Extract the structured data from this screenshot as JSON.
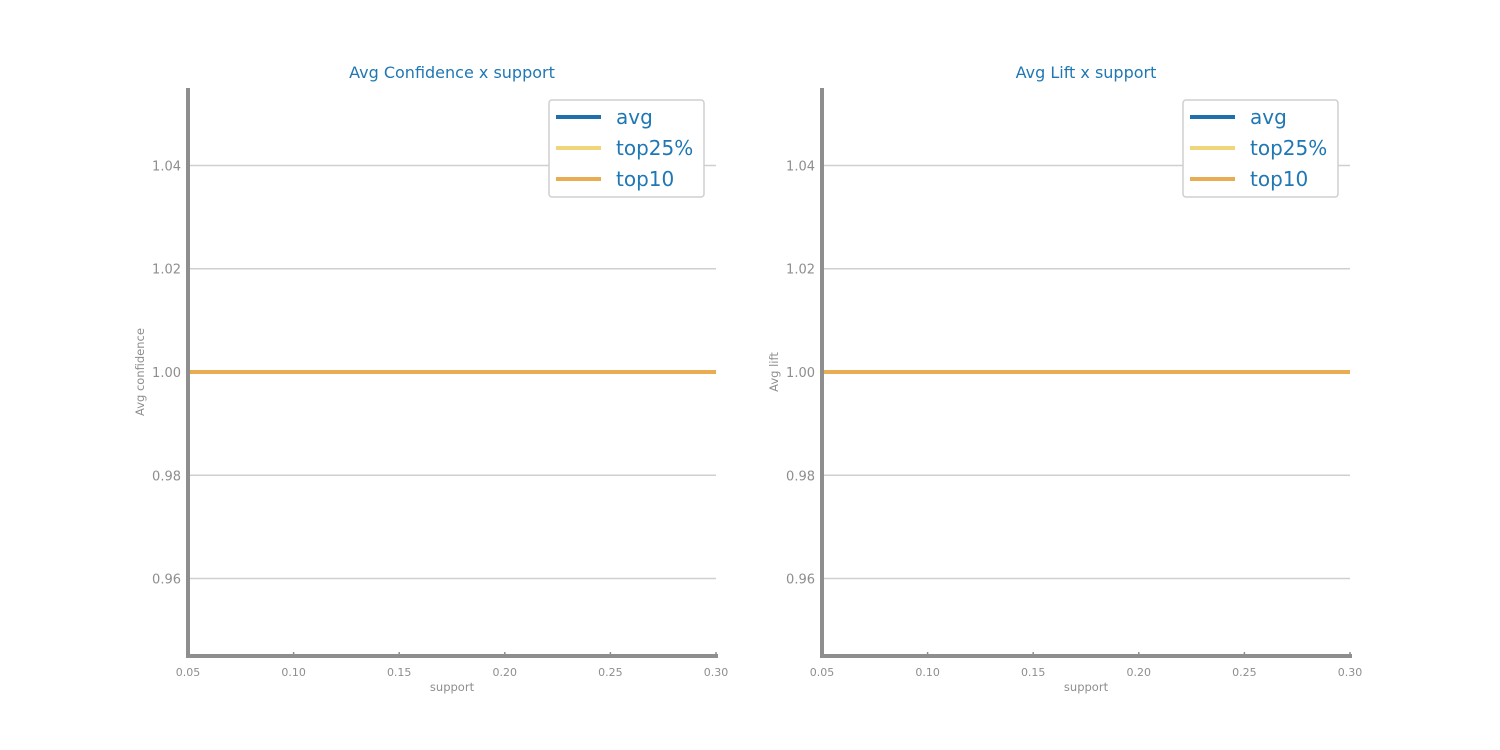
{
  "chart_data": [
    {
      "type": "line",
      "title": "Avg Confidence x support",
      "xlabel": "support",
      "ylabel": "Avg confidence",
      "xlim": [
        0.05,
        0.3
      ],
      "ylim": [
        0.945,
        1.055
      ],
      "x_ticks": [
        "0.05",
        "0.10",
        "0.15",
        "0.20",
        "0.25",
        "0.30"
      ],
      "x_tick_values": [
        0.05,
        0.1,
        0.15,
        0.2,
        0.25,
        0.3
      ],
      "y_ticks": [
        "0.96",
        "0.98",
        "1.00",
        "1.02",
        "1.04"
      ],
      "y_tick_values": [
        0.96,
        0.98,
        1.0,
        1.02,
        1.04
      ],
      "grid": "horizontal",
      "legend": "top-right",
      "x": [
        0.05,
        0.3
      ],
      "series": [
        {
          "name": "avg",
          "color": "#1f6fad",
          "values": [
            1.0,
            1.0
          ]
        },
        {
          "name": "top25%",
          "color": "#f1d57a",
          "values": [
            1.0,
            1.0
          ]
        },
        {
          "name": "top10",
          "color": "#e8ad52",
          "values": [
            1.0,
            1.0
          ]
        }
      ]
    },
    {
      "type": "line",
      "title": "Avg Lift x support",
      "xlabel": "support",
      "ylabel": "Avg lift",
      "xlim": [
        0.05,
        0.3
      ],
      "ylim": [
        0.945,
        1.055
      ],
      "x_ticks": [
        "0.05",
        "0.10",
        "0.15",
        "0.20",
        "0.25",
        "0.30"
      ],
      "x_tick_values": [
        0.05,
        0.1,
        0.15,
        0.2,
        0.25,
        0.3
      ],
      "y_ticks": [
        "0.96",
        "0.98",
        "1.00",
        "1.02",
        "1.04"
      ],
      "y_tick_values": [
        0.96,
        0.98,
        1.0,
        1.02,
        1.04
      ],
      "grid": "horizontal",
      "legend": "top-right",
      "x": [
        0.05,
        0.3
      ],
      "series": [
        {
          "name": "avg",
          "color": "#1f6fad",
          "values": [
            1.0,
            1.0
          ]
        },
        {
          "name": "top25%",
          "color": "#f1d57a",
          "values": [
            1.0,
            1.0
          ]
        },
        {
          "name": "top10",
          "color": "#e8ad52",
          "values": [
            1.0,
            1.0
          ]
        }
      ]
    }
  ]
}
